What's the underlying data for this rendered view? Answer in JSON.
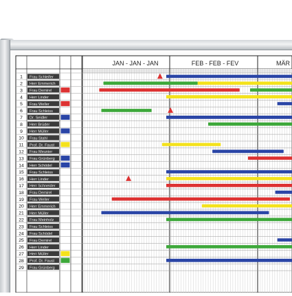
{
  "months": [
    "JAN - JAN - JAN",
    "FEB - FEB - FEV",
    "MÄR"
  ],
  "rows": [
    {
      "no": "1",
      "name": "Frau Schleifer"
    },
    {
      "no": "2",
      "name": "Herr Emmerich"
    },
    {
      "no": "3",
      "name": "Frau Demirel"
    },
    {
      "no": "4",
      "name": "Herr Linder"
    },
    {
      "no": "5",
      "name": "Frau Weller"
    },
    {
      "no": "6",
      "name": "Frau Schleiss"
    },
    {
      "no": "7",
      "name": "Dr. Seidler"
    },
    {
      "no": "8",
      "name": "Herr Brüder"
    },
    {
      "no": "9",
      "name": "Herr Müller"
    },
    {
      "no": "10",
      "name": "Frau Stahl"
    },
    {
      "no": "11",
      "name": "Prof. Dr. Faust"
    },
    {
      "no": "12",
      "name": "Frau Meunier"
    },
    {
      "no": "13",
      "name": "Frau Grünberg"
    },
    {
      "no": "14",
      "name": "Herr Schödel"
    },
    {
      "no": "15",
      "name": "Frau Schleiss"
    },
    {
      "no": "16",
      "name": "Herr Linder"
    },
    {
      "no": "17",
      "name": "Herr Schneider"
    },
    {
      "no": "18",
      "name": "Frau Demirel"
    },
    {
      "no": "19",
      "name": "Frau Weller"
    },
    {
      "no": "20",
      "name": "Herr Emmerich"
    },
    {
      "no": "21",
      "name": "Herr Müller"
    },
    {
      "no": "22",
      "name": "Frau Meinholz"
    },
    {
      "no": "23",
      "name": "Frau Schleiss"
    },
    {
      "no": "24",
      "name": "Frau Schödel"
    },
    {
      "no": "25",
      "name": "Frau Demirel"
    },
    {
      "no": "26",
      "name": "Herr Linder"
    },
    {
      "no": "27",
      "name": "Herr Müller"
    },
    {
      "no": "28",
      "name": "Prof. Dr. Faust"
    },
    {
      "no": "29",
      "name": "Frau Grünberg"
    }
  ],
  "colors": {
    "blue": "#2a45a6",
    "green": "#3da83a",
    "red": "#dd3232",
    "yellow": "#f4e21c",
    "frame": "#c9cdd1",
    "name_bg": "#3b3b3b"
  },
  "markers": [
    {
      "row": 3,
      "color": "red"
    },
    {
      "row": 5,
      "color": "red"
    },
    {
      "row": 7,
      "color": "blue"
    },
    {
      "row": 9,
      "color": "blue"
    },
    {
      "row": 11,
      "color": "yellow"
    },
    {
      "row": 13,
      "color": "blue"
    },
    {
      "row": 14,
      "color": "blue"
    },
    {
      "row": 27,
      "color": "yellow"
    },
    {
      "row": 28,
      "color": "green"
    }
  ],
  "bars": [
    {
      "row": 1,
      "color": "blue",
      "start": 0.4,
      "end": 1.0
    },
    {
      "row": 2,
      "color": "green",
      "start": 0.1,
      "end": 0.55
    },
    {
      "row": 2,
      "color": "yellow",
      "start": 0.55,
      "end": 1.0
    },
    {
      "row": 3,
      "color": "red",
      "start": 0.08,
      "end": 0.75
    },
    {
      "row": 3,
      "color": "green",
      "start": 0.8,
      "end": 1.0
    },
    {
      "row": 4,
      "color": "yellow",
      "start": 0.4,
      "end": 1.0
    },
    {
      "row": 5,
      "color": "blue",
      "start": 0.93,
      "end": 1.0
    },
    {
      "row": 6,
      "color": "green",
      "start": 0.09,
      "end": 0.33
    },
    {
      "row": 7,
      "color": "blue",
      "start": 0.4,
      "end": 1.0
    },
    {
      "row": 8,
      "color": "green",
      "start": 0.6,
      "end": 1.0
    },
    {
      "row": 11,
      "color": "yellow",
      "start": 0.38,
      "end": 0.66
    },
    {
      "row": 12,
      "color": "blue",
      "start": 0.62,
      "end": 0.96
    },
    {
      "row": 13,
      "color": "red",
      "start": 0.79,
      "end": 1.0
    },
    {
      "row": 15,
      "color": "blue",
      "start": 0.4,
      "end": 1.0
    },
    {
      "row": 16,
      "color": "yellow",
      "start": 0.4,
      "end": 1.0
    },
    {
      "row": 17,
      "color": "red",
      "start": 0.4,
      "end": 1.0
    },
    {
      "row": 18,
      "color": "blue",
      "start": 0.92,
      "end": 1.0
    },
    {
      "row": 19,
      "color": "red",
      "start": 0.14,
      "end": 0.99
    },
    {
      "row": 20,
      "color": "yellow",
      "start": 0.57,
      "end": 1.0
    },
    {
      "row": 21,
      "color": "blue",
      "start": 0.09,
      "end": 0.89
    },
    {
      "row": 22,
      "color": "green",
      "start": 0.4,
      "end": 1.0
    },
    {
      "row": 25,
      "color": "blue",
      "start": 0.93,
      "end": 1.0
    },
    {
      "row": 26,
      "color": "green",
      "start": 0.4,
      "end": 1.0
    },
    {
      "row": 28,
      "color": "blue",
      "start": 0.4,
      "end": 1.0
    }
  ],
  "triangles": [
    {
      "row": 1,
      "pos": 0.37
    },
    {
      "row": 6,
      "pos": 0.42
    },
    {
      "row": 16,
      "pos": 0.22
    }
  ]
}
